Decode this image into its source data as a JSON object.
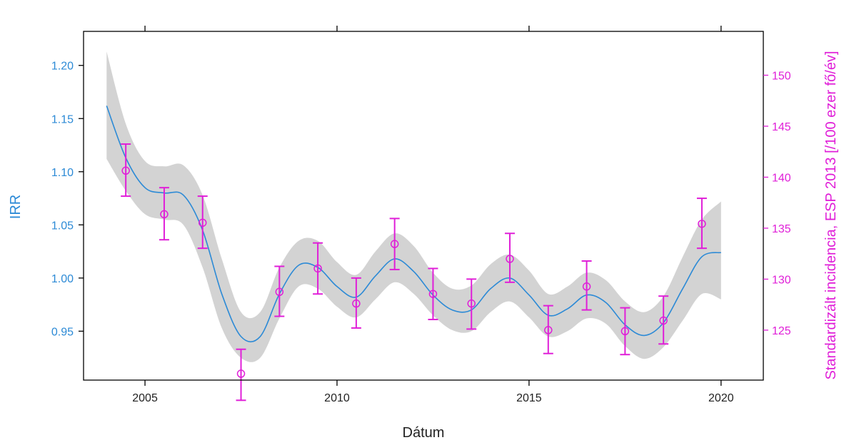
{
  "chart_data": {
    "type": "line",
    "xlabel": "Dátum",
    "ylabel": "IRR",
    "y2label": "Standardizált incidencia, ESP 2013 [/100 ezer fő/év]",
    "xlim": [
      2003.4,
      2021.1
    ],
    "ylim": [
      0.904,
      1.232
    ],
    "y2lim": [
      120.1,
      154.3
    ],
    "x_ticks": [
      2005,
      2010,
      2015,
      2020
    ],
    "x_tick_labels": [
      "2005",
      "2010",
      "2015",
      "2020"
    ],
    "y_ticks": [
      0.95,
      1.0,
      1.05,
      1.1,
      1.15,
      1.2
    ],
    "y_tick_labels": [
      "0.95",
      "1.00",
      "1.05",
      "1.10",
      "1.15",
      "1.20"
    ],
    "y2_ticks": [
      125,
      130,
      135,
      140,
      145,
      150
    ],
    "y2_tick_labels": [
      "125",
      "130",
      "135",
      "140",
      "145",
      "150"
    ],
    "grid": false,
    "colors": {
      "fit_line": "#2c8ad6",
      "band": "#d3d3d3",
      "points": "#e01fd8",
      "left_axis": "#2c8ad6",
      "right_axis": "#e01fd8",
      "frame": "#000000"
    },
    "series": [
      {
        "kind": "smooth_fit_with_band",
        "x": [
          2004.0,
          2004.5,
          2005.0,
          2005.5,
          2006.0,
          2006.5,
          2007.0,
          2007.5,
          2008.0,
          2008.5,
          2009.0,
          2009.5,
          2010.0,
          2010.5,
          2011.0,
          2011.5,
          2012.0,
          2012.5,
          2013.0,
          2013.5,
          2014.0,
          2014.5,
          2015.0,
          2015.5,
          2016.0,
          2016.5,
          2017.0,
          2017.5,
          2018.0,
          2018.5,
          2019.0,
          2019.5,
          2020.0
        ],
        "y": [
          1.162,
          1.113,
          1.085,
          1.08,
          1.078,
          1.045,
          0.985,
          0.945,
          0.945,
          0.985,
          1.012,
          1.01,
          0.992,
          0.982,
          1.002,
          1.018,
          1.006,
          0.984,
          0.97,
          0.97,
          0.99,
          1.0,
          0.984,
          0.965,
          0.971,
          0.984,
          0.977,
          0.956,
          0.946,
          0.958,
          0.99,
          1.02,
          1.024
        ],
        "lower": [
          1.112,
          1.082,
          1.06,
          1.055,
          1.05,
          1.01,
          0.953,
          0.925,
          0.925,
          0.962,
          0.992,
          0.99,
          0.973,
          0.963,
          0.98,
          0.996,
          0.985,
          0.965,
          0.951,
          0.95,
          0.968,
          0.978,
          0.963,
          0.945,
          0.95,
          0.962,
          0.957,
          0.936,
          0.924,
          0.935,
          0.96,
          0.985,
          0.98
        ],
        "upper": [
          1.213,
          1.145,
          1.11,
          1.105,
          1.106,
          1.078,
          1.018,
          0.968,
          0.968,
          1.01,
          1.035,
          1.035,
          1.015,
          1.003,
          1.025,
          1.042,
          1.03,
          1.005,
          0.99,
          0.993,
          1.013,
          1.022,
          1.007,
          0.985,
          0.992,
          1.005,
          0.998,
          0.978,
          0.968,
          0.983,
          1.02,
          1.055,
          1.072
        ]
      },
      {
        "kind": "points_with_errorbars",
        "x": [
          2004.5,
          2005.5,
          2006.5,
          2007.5,
          2008.5,
          2009.5,
          2010.5,
          2011.5,
          2012.5,
          2013.5,
          2014.5,
          2015.5,
          2016.5,
          2017.5,
          2018.5,
          2019.5
        ],
        "y": [
          1.101,
          1.06,
          1.052,
          0.91,
          0.987,
          1.009,
          0.976,
          1.032,
          0.985,
          0.976,
          1.018,
          0.951,
          0.992,
          0.95,
          0.96,
          1.051
        ],
        "lower": [
          1.077,
          1.036,
          1.028,
          0.885,
          0.964,
          0.985,
          0.953,
          1.008,
          0.961,
          0.952,
          0.996,
          0.929,
          0.97,
          0.928,
          0.938,
          1.028
        ],
        "upper": [
          1.126,
          1.085,
          1.077,
          0.933,
          1.011,
          1.033,
          1.0,
          1.056,
          1.009,
          0.999,
          1.042,
          0.974,
          1.016,
          0.972,
          0.983,
          1.075
        ]
      }
    ]
  }
}
